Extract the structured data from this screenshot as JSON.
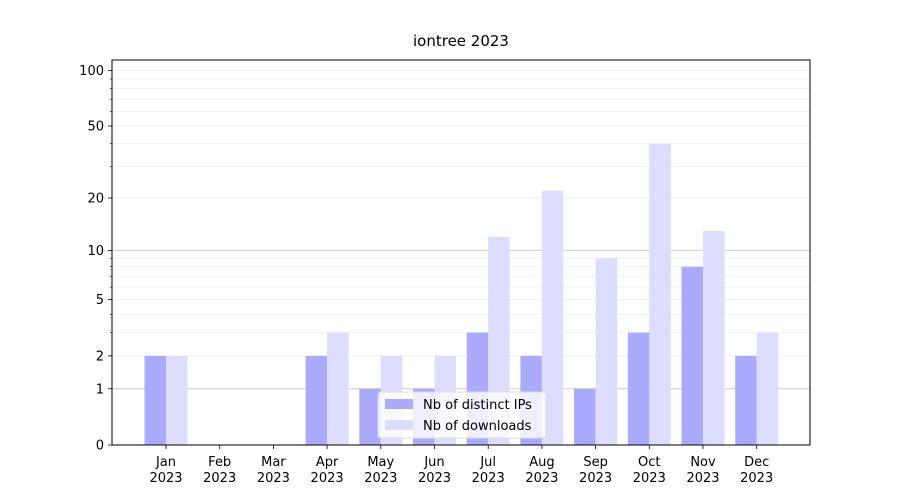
{
  "chart_data": {
    "type": "bar",
    "title": "iontree 2023",
    "categories": [
      "Jan\n2023",
      "Feb\n2023",
      "Mar\n2023",
      "Apr\n2023",
      "May\n2023",
      "Jun\n2023",
      "Jul\n2023",
      "Aug\n2023",
      "Sep\n2023",
      "Oct\n2023",
      "Nov\n2023",
      "Dec\n2023"
    ],
    "series": [
      {
        "name": "Nb of distinct IPs",
        "color": "#aaaaff",
        "values": [
          2,
          0,
          0,
          2,
          1,
          1,
          3,
          2,
          1,
          3,
          8,
          2
        ]
      },
      {
        "name": "Nb of downloads",
        "color": "#ddddff",
        "values": [
          2,
          0,
          0,
          3,
          2,
          2,
          12,
          22,
          9,
          40,
          13,
          3
        ]
      }
    ],
    "yscale": "log1p",
    "ylim": [
      0,
      114
    ],
    "yticks": [
      0,
      1,
      2,
      5,
      10,
      20,
      50,
      100
    ],
    "minor_yticks": [
      3,
      4,
      6,
      7,
      8,
      9,
      30,
      40,
      60,
      70,
      80,
      90
    ],
    "grid": true,
    "legend": "lower center"
  }
}
